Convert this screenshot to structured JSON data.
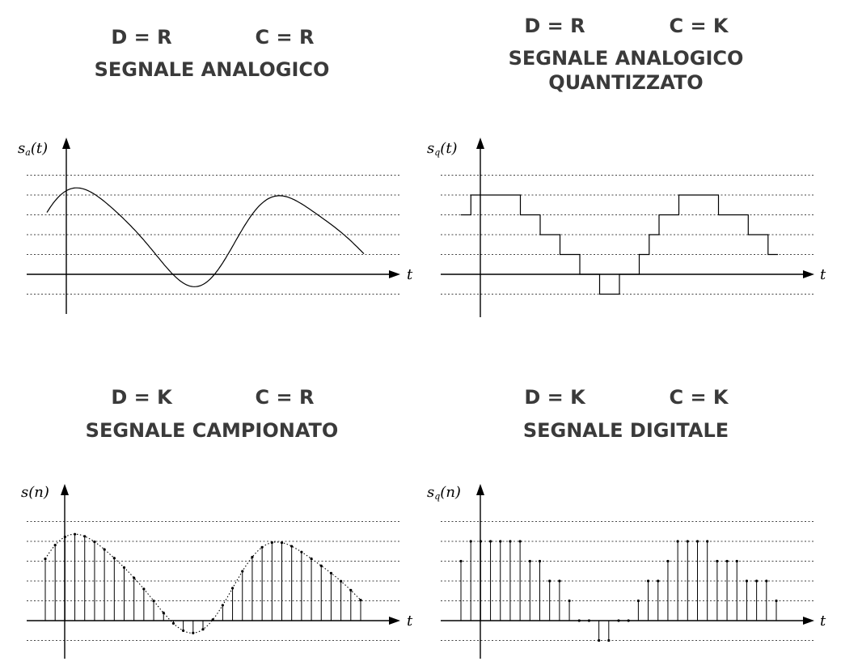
{
  "panels": [
    {
      "id": "analog",
      "d_label": "D = R",
      "c_label": "C = R",
      "title_lines": [
        "SEGNALE ANALOGICO"
      ],
      "y_symbol": "s",
      "y_sub": "a",
      "y_arg": "(t)",
      "x_label": "t",
      "kind": "continuous"
    },
    {
      "id": "quantized",
      "d_label": "D = R",
      "c_label": "C = K",
      "title_lines": [
        "SEGNALE ANALOGICO",
        "QUANTIZZATO"
      ],
      "y_symbol": "s",
      "y_sub": "q",
      "y_arg": "(t)",
      "x_label": "t",
      "kind": "staircase"
    },
    {
      "id": "sampled",
      "d_label": "D = K",
      "c_label": "C = R",
      "title_lines": [
        "SEGNALE CAMPIONATO"
      ],
      "y_symbol": "s",
      "y_sub": "",
      "y_arg": "(n)",
      "x_label": "t",
      "kind": "samples"
    },
    {
      "id": "digital",
      "d_label": "D = K",
      "c_label": "C = K",
      "title_lines": [
        "SEGNALE DIGITALE"
      ],
      "y_symbol": "s",
      "y_sub": "q",
      "y_arg": "(n)",
      "x_label": "t",
      "kind": "quantized-samples"
    }
  ]
}
